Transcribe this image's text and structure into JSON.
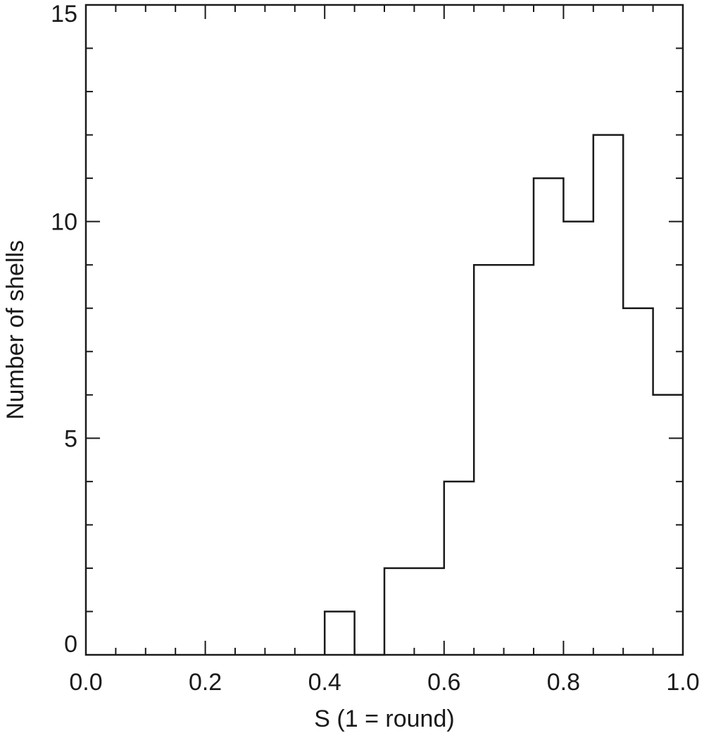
{
  "chart_data": {
    "type": "bar",
    "style": "step-histogram",
    "xlabel": "S (1 = round)",
    "ylabel": "Number of shells",
    "xlim": [
      0.0,
      1.0
    ],
    "ylim": [
      0,
      15
    ],
    "bin_width": 0.05,
    "bins": [
      {
        "x0": 0.4,
        "x1": 0.45,
        "count": 1
      },
      {
        "x0": 0.45,
        "x1": 0.5,
        "count": 0
      },
      {
        "x0": 0.5,
        "x1": 0.55,
        "count": 2
      },
      {
        "x0": 0.55,
        "x1": 0.6,
        "count": 2
      },
      {
        "x0": 0.6,
        "x1": 0.65,
        "count": 4
      },
      {
        "x0": 0.65,
        "x1": 0.7,
        "count": 9
      },
      {
        "x0": 0.7,
        "x1": 0.75,
        "count": 9
      },
      {
        "x0": 0.75,
        "x1": 0.8,
        "count": 11
      },
      {
        "x0": 0.8,
        "x1": 0.85,
        "count": 10
      },
      {
        "x0": 0.85,
        "x1": 0.9,
        "count": 12
      },
      {
        "x0": 0.9,
        "x1": 0.95,
        "count": 8
      },
      {
        "x0": 0.95,
        "x1": 1.0,
        "count": 6
      }
    ],
    "x_ticks": [
      {
        "value": 0.0,
        "label": "0.0"
      },
      {
        "value": 0.2,
        "label": "0.2"
      },
      {
        "value": 0.4,
        "label": "0.4"
      },
      {
        "value": 0.6,
        "label": "0.6"
      },
      {
        "value": 0.8,
        "label": "0.8"
      },
      {
        "value": 1.0,
        "label": "1.0"
      }
    ],
    "x_minor_step": 0.05,
    "y_ticks": [
      {
        "value": 0,
        "label": "0"
      },
      {
        "value": 5,
        "label": "5"
      },
      {
        "value": 10,
        "label": "10"
      },
      {
        "value": 15,
        "label": "15"
      }
    ],
    "y_minor_step": 1,
    "grid": false,
    "colors": {
      "line": "#1a1a1a",
      "background": "#ffffff"
    }
  }
}
